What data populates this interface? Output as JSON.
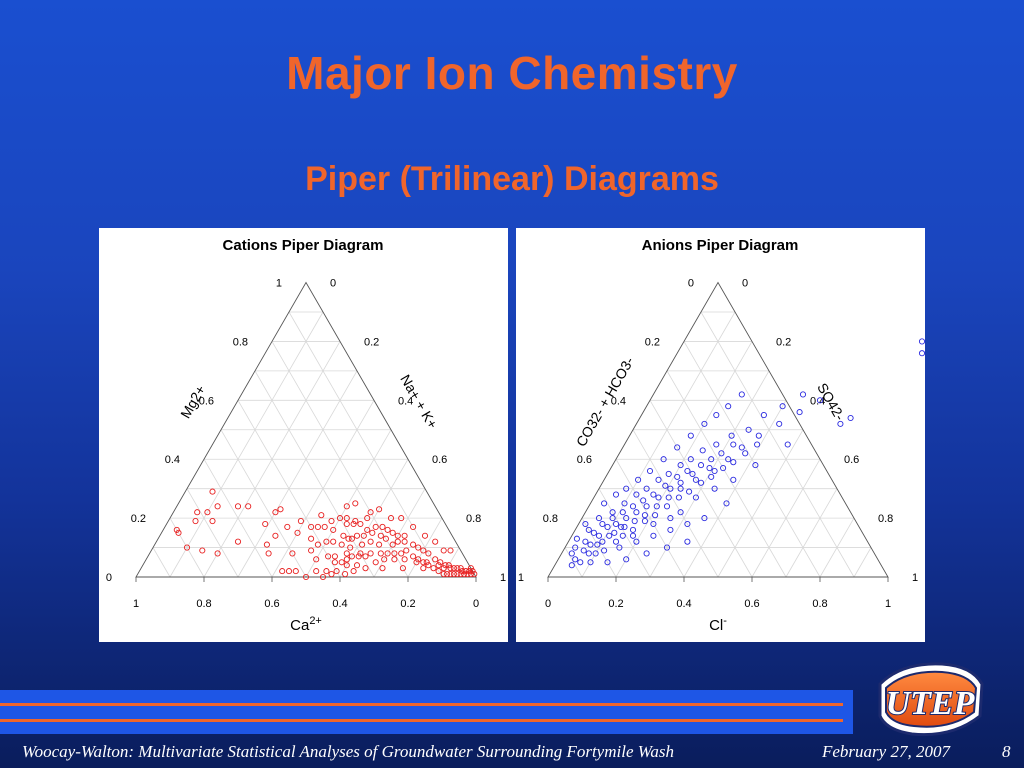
{
  "slide": {
    "title": "Major Ion Chemistry",
    "subtitle": "Piper (Trilinear) Diagrams",
    "footer_text": "Woocay-Walton: Multivariate Statistical Analyses of Groundwater Surrounding Fortymile Wash",
    "footer_date": "February 27, 2007",
    "page_number": "8",
    "logo_text": "UTEP",
    "colors": {
      "title": "#f0652b",
      "background": "#1a4fd0",
      "bar": "#1e56e6",
      "accent": "#f0652b"
    }
  },
  "chart_data": [
    {
      "type": "scatter",
      "subtype": "ternary",
      "title": "Cations Piper Diagram",
      "axes": {
        "bottom": {
          "label": "Ca2+",
          "label_main": "Ca",
          "label_sup": "2+",
          "ticks": [
            "1",
            "0.8",
            "0.6",
            "0.4",
            "0.2",
            "0"
          ]
        },
        "left": {
          "label": "Mg2+",
          "ticks": [
            "0",
            "0.2",
            "0.4",
            "0.6",
            "0.8",
            "1"
          ]
        },
        "right": {
          "label": "Na+ + K+",
          "ticks": [
            "0",
            "0.2",
            "0.4",
            "0.6",
            "0.8",
            "1"
          ]
        }
      },
      "grid": true,
      "marker_color": "#e82020",
      "point_format": "[Ca, Na+K]",
      "points": [
        [
          0.8,
          0.1
        ],
        [
          0.8,
          0.05
        ],
        [
          0.8,
          0.04
        ],
        [
          0.76,
          0.15
        ],
        [
          0.73,
          0.08
        ],
        [
          0.72,
          0.2
        ],
        [
          0.71,
          0.07
        ],
        [
          0.68,
          0.13
        ],
        [
          0.68,
          0.1
        ],
        [
          0.64,
          0.24
        ],
        [
          0.64,
          0.12
        ],
        [
          0.63,
          0.08
        ],
        [
          0.58,
          0.18
        ],
        [
          0.57,
          0.35
        ],
        [
          0.56,
          0.33
        ],
        [
          0.55,
          0.21
        ],
        [
          0.53,
          0.29
        ],
        [
          0.52,
          0.34
        ],
        [
          0.5,
          0.42
        ],
        [
          0.48,
          0.3
        ],
        [
          0.47,
          0.36
        ],
        [
          0.46,
          0.31
        ],
        [
          0.45,
          0.4
        ],
        [
          0.44,
          0.47
        ],
        [
          0.44,
          0.5
        ],
        [
          0.42,
          0.45
        ],
        [
          0.42,
          0.39
        ],
        [
          0.41,
          0.48
        ],
        [
          0.4,
          0.53
        ],
        [
          0.4,
          0.43
        ],
        [
          0.39,
          0.56
        ],
        [
          0.38,
          0.5
        ],
        [
          0.38,
          0.45
        ],
        [
          0.37,
          0.58
        ],
        [
          0.36,
          0.47
        ],
        [
          0.36,
          0.52
        ],
        [
          0.35,
          0.44
        ],
        [
          0.35,
          0.59
        ],
        [
          0.34,
          0.55
        ],
        [
          0.34,
          0.5
        ],
        [
          0.33,
          0.48
        ],
        [
          0.33,
          0.6
        ],
        [
          0.32,
          0.54
        ],
        [
          0.32,
          0.58
        ],
        [
          0.31,
          0.62
        ],
        [
          0.3,
          0.5
        ],
        [
          0.3,
          0.57
        ],
        [
          0.29,
          0.53
        ],
        [
          0.29,
          0.64
        ],
        [
          0.28,
          0.58
        ],
        [
          0.28,
          0.61
        ],
        [
          0.27,
          0.55
        ],
        [
          0.27,
          0.65
        ],
        [
          0.26,
          0.5
        ],
        [
          0.26,
          0.6
        ],
        [
          0.25,
          0.63
        ],
        [
          0.25,
          0.57
        ],
        [
          0.24,
          0.68
        ],
        [
          0.24,
          0.6
        ],
        [
          0.23,
          0.66
        ],
        [
          0.23,
          0.62
        ],
        [
          0.22,
          0.58
        ],
        [
          0.22,
          0.7
        ],
        [
          0.21,
          0.65
        ],
        [
          0.21,
          0.62
        ],
        [
          0.2,
          0.67
        ],
        [
          0.2,
          0.72
        ],
        [
          0.19,
          0.64
        ],
        [
          0.19,
          0.7
        ],
        [
          0.18,
          0.74
        ],
        [
          0.18,
          0.66
        ],
        [
          0.17,
          0.71
        ],
        [
          0.17,
          0.68
        ],
        [
          0.16,
          0.75
        ],
        [
          0.16,
          0.7
        ],
        [
          0.15,
          0.73
        ],
        [
          0.15,
          0.78
        ],
        [
          0.14,
          0.72
        ],
        [
          0.14,
          0.8
        ],
        [
          0.13,
          0.76
        ],
        [
          0.13,
          0.82
        ],
        [
          0.12,
          0.78
        ],
        [
          0.12,
          0.84
        ],
        [
          0.11,
          0.8
        ],
        [
          0.11,
          0.86
        ],
        [
          0.1,
          0.82
        ],
        [
          0.1,
          0.88
        ],
        [
          0.09,
          0.85
        ],
        [
          0.09,
          0.9
        ],
        [
          0.08,
          0.87
        ],
        [
          0.08,
          0.91
        ],
        [
          0.07,
          0.89
        ],
        [
          0.07,
          0.92
        ],
        [
          0.06,
          0.9
        ],
        [
          0.06,
          0.93
        ],
        [
          0.05,
          0.92
        ],
        [
          0.05,
          0.94
        ],
        [
          0.04,
          0.93
        ],
        [
          0.04,
          0.95
        ],
        [
          0.03,
          0.95
        ],
        [
          0.03,
          0.96
        ],
        [
          0.02,
          0.97
        ],
        [
          0.02,
          0.96
        ],
        [
          0.01,
          0.97
        ],
        [
          0.01,
          0.98
        ],
        [
          0.0,
          0.97
        ],
        [
          0.0,
          0.98
        ],
        [
          0.0,
          0.99
        ],
        [
          0.3,
          0.62
        ],
        [
          0.33,
          0.63
        ],
        [
          0.36,
          0.6
        ],
        [
          0.4,
          0.58
        ],
        [
          0.43,
          0.55
        ],
        [
          0.46,
          0.52
        ],
        [
          0.27,
          0.68
        ],
        [
          0.24,
          0.7
        ],
        [
          0.21,
          0.73
        ],
        [
          0.18,
          0.76
        ],
        [
          0.15,
          0.8
        ],
        [
          0.12,
          0.83
        ],
        [
          0.09,
          0.87
        ],
        [
          0.06,
          0.91
        ],
        [
          0.03,
          0.94
        ],
        [
          0.26,
          0.71
        ],
        [
          0.2,
          0.77
        ],
        [
          0.14,
          0.83
        ],
        [
          0.08,
          0.89
        ],
        [
          0.31,
          0.66
        ],
        [
          0.35,
          0.63
        ],
        [
          0.38,
          0.61
        ],
        [
          0.42,
          0.57
        ],
        [
          0.46,
          0.55
        ],
        [
          0.5,
          0.5
        ],
        [
          0.52,
          0.46
        ],
        [
          0.54,
          0.44
        ],
        [
          0.56,
          0.42
        ],
        [
          0.38,
          0.55
        ],
        [
          0.34,
          0.58
        ],
        [
          0.31,
          0.56
        ],
        [
          0.28,
          0.52
        ],
        [
          0.26,
          0.55
        ],
        [
          0.23,
          0.52
        ],
        [
          0.2,
          0.58
        ],
        [
          0.17,
          0.6
        ],
        [
          0.15,
          0.65
        ],
        [
          0.12,
          0.68
        ],
        [
          0.1,
          0.73
        ],
        [
          0.08,
          0.78
        ],
        [
          0.06,
          0.82
        ],
        [
          0.05,
          0.86
        ],
        [
          0.03,
          0.88
        ]
      ]
    },
    {
      "type": "scatter",
      "subtype": "ternary",
      "title": "Anions Piper Diagram",
      "axes": {
        "bottom": {
          "label": "Cl-",
          "label_main": "Cl",
          "label_sup": "-",
          "ticks": [
            "0",
            "0.2",
            "0.4",
            "0.6",
            "0.8",
            "1"
          ]
        },
        "left": {
          "label": "CO32- + HCO3-",
          "ticks": [
            "1",
            "0.8",
            "0.6",
            "0.4",
            "0.2",
            "0"
          ]
        },
        "right": {
          "label": "SO42-",
          "ticks": [
            "0",
            "0.2",
            "0.4",
            "0.6",
            "0.8",
            "1"
          ]
        }
      },
      "grid": true,
      "marker_color": "#2a2ae0",
      "point_format": "[Cl, SO4]",
      "points": [
        [
          0.02,
          0.13
        ],
        [
          0.02,
          0.18
        ],
        [
          0.03,
          0.1
        ],
        [
          0.04,
          0.16
        ],
        [
          0.05,
          0.12
        ],
        [
          0.05,
          0.2
        ],
        [
          0.06,
          0.15
        ],
        [
          0.07,
          0.18
        ],
        [
          0.07,
          0.11
        ],
        [
          0.08,
          0.14
        ],
        [
          0.08,
          0.22
        ],
        [
          0.09,
          0.17
        ],
        [
          0.09,
          0.2
        ],
        [
          0.1,
          0.12
        ],
        [
          0.1,
          0.25
        ],
        [
          0.11,
          0.18
        ],
        [
          0.11,
          0.22
        ],
        [
          0.12,
          0.15
        ],
        [
          0.12,
          0.28
        ],
        [
          0.13,
          0.2
        ],
        [
          0.13,
          0.24
        ],
        [
          0.14,
          0.17
        ],
        [
          0.14,
          0.3
        ],
        [
          0.15,
          0.22
        ],
        [
          0.15,
          0.26
        ],
        [
          0.16,
          0.19
        ],
        [
          0.16,
          0.33
        ],
        [
          0.17,
          0.24
        ],
        [
          0.17,
          0.28
        ],
        [
          0.18,
          0.21
        ],
        [
          0.18,
          0.35
        ],
        [
          0.19,
          0.27
        ],
        [
          0.19,
          0.31
        ],
        [
          0.2,
          0.24
        ],
        [
          0.2,
          0.38
        ],
        [
          0.21,
          0.3
        ],
        [
          0.21,
          0.34
        ],
        [
          0.22,
          0.27
        ],
        [
          0.22,
          0.4
        ],
        [
          0.23,
          0.32
        ],
        [
          0.23,
          0.36
        ],
        [
          0.24,
          0.3
        ],
        [
          0.24,
          0.43
        ],
        [
          0.25,
          0.35
        ],
        [
          0.26,
          0.38
        ],
        [
          0.27,
          0.33
        ],
        [
          0.27,
          0.45
        ],
        [
          0.28,
          0.4
        ],
        [
          0.29,
          0.37
        ],
        [
          0.3,
          0.48
        ],
        [
          0.3,
          0.42
        ],
        [
          0.31,
          0.36
        ],
        [
          0.32,
          0.45
        ],
        [
          0.33,
          0.4
        ],
        [
          0.34,
          0.5
        ],
        [
          0.35,
          0.44
        ],
        [
          0.36,
          0.55
        ],
        [
          0.38,
          0.48
        ],
        [
          0.4,
          0.58
        ],
        [
          0.42,
          0.52
        ],
        [
          0.44,
          0.62
        ],
        [
          0.46,
          0.56
        ],
        [
          0.48,
          0.45
        ],
        [
          0.5,
          0.6
        ],
        [
          0.04,
          0.25
        ],
        [
          0.06,
          0.28
        ],
        [
          0.08,
          0.3
        ],
        [
          0.1,
          0.33
        ],
        [
          0.12,
          0.36
        ],
        [
          0.14,
          0.4
        ],
        [
          0.16,
          0.44
        ],
        [
          0.18,
          0.48
        ],
        [
          0.2,
          0.52
        ],
        [
          0.22,
          0.55
        ],
        [
          0.24,
          0.58
        ],
        [
          0.26,
          0.62
        ],
        [
          0.05,
          0.06
        ],
        [
          0.08,
          0.08
        ],
        [
          0.12,
          0.09
        ],
        [
          0.16,
          0.1
        ],
        [
          0.2,
          0.12
        ],
        [
          0.24,
          0.14
        ],
        [
          0.28,
          0.16
        ],
        [
          0.32,
          0.18
        ],
        [
          0.36,
          0.2
        ],
        [
          0.4,
          0.25
        ],
        [
          0.6,
          0.52
        ],
        [
          0.62,
          0.54
        ],
        [
          0.7,
          0.8
        ],
        [
          0.72,
          0.76
        ],
        [
          0.85,
          0.92
        ],
        [
          0.9,
          0.88
        ],
        [
          0.93,
          0.96
        ],
        [
          0.15,
          0.05
        ],
        [
          0.1,
          0.05
        ],
        [
          0.05,
          0.04
        ],
        [
          0.2,
          0.06
        ],
        [
          0.25,
          0.08
        ],
        [
          0.3,
          0.1
        ],
        [
          0.35,
          0.12
        ],
        [
          0.28,
          0.22
        ],
        [
          0.3,
          0.27
        ],
        [
          0.34,
          0.3
        ],
        [
          0.38,
          0.33
        ],
        [
          0.42,
          0.38
        ],
        [
          0.14,
          0.12
        ],
        [
          0.18,
          0.14
        ],
        [
          0.22,
          0.18
        ],
        [
          0.26,
          0.2
        ],
        [
          0.1,
          0.08
        ],
        [
          0.07,
          0.05
        ],
        [
          0.03,
          0.08
        ],
        [
          0.06,
          0.09
        ],
        [
          0.09,
          0.11
        ],
        [
          0.11,
          0.14
        ],
        [
          0.13,
          0.17
        ],
        [
          0.15,
          0.14
        ],
        [
          0.17,
          0.16
        ],
        [
          0.19,
          0.19
        ],
        [
          0.21,
          0.21
        ],
        [
          0.23,
          0.24
        ],
        [
          0.25,
          0.27
        ],
        [
          0.27,
          0.29
        ],
        [
          0.29,
          0.32
        ],
        [
          0.31,
          0.34
        ],
        [
          0.33,
          0.37
        ],
        [
          0.35,
          0.39
        ],
        [
          0.37,
          0.42
        ],
        [
          0.39,
          0.45
        ]
      ]
    }
  ]
}
